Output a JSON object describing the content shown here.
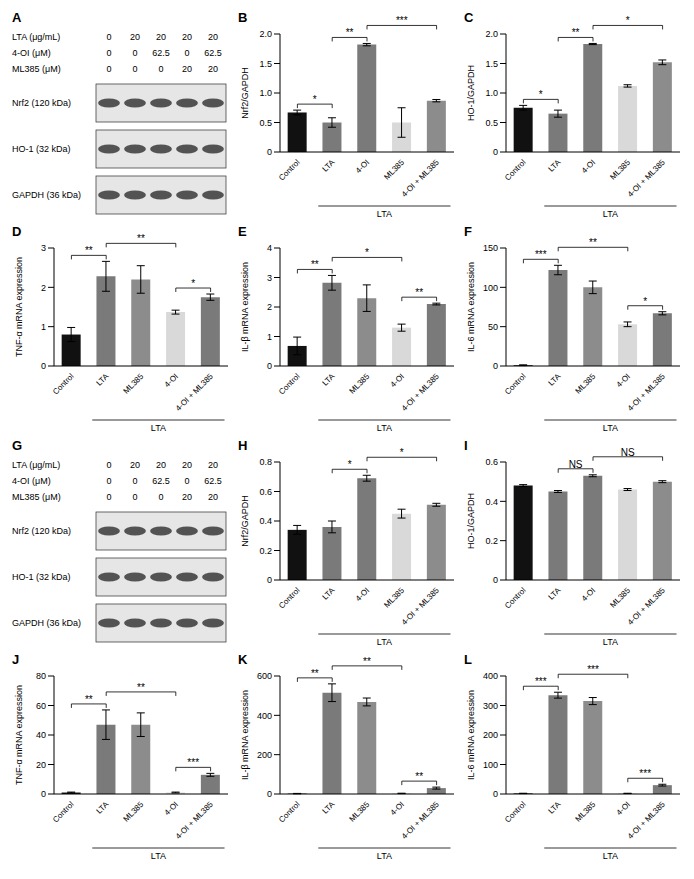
{
  "chart_data": [
    {
      "type": "western_blot",
      "panel": "A",
      "conditions": [
        {
          "label": "LTA (μg/mL)",
          "values": [
            0,
            20,
            20,
            20,
            20
          ]
        },
        {
          "label": "4-OI (μM)",
          "values": [
            0,
            0,
            62.5,
            0,
            62.5
          ]
        },
        {
          "label": "ML385 (μM)",
          "values": [
            0,
            0,
            0,
            20,
            20
          ]
        }
      ],
      "bands": [
        "Nrf2 (120 kDa)",
        "HO-1 (32 kDa)",
        "GAPDH (36 kDa)"
      ]
    },
    {
      "type": "bar",
      "panel": "B",
      "ylabel": "Nrf2/GAPDH",
      "categories": [
        "Control",
        "LTA",
        "4-OI",
        "ML385",
        "4-OI + ML385"
      ],
      "values": [
        0.67,
        0.5,
        1.82,
        0.5,
        0.87
      ],
      "errors": [
        0.04,
        0.08,
        0.02,
        0.25,
        0.02
      ],
      "colors": [
        "#111111",
        "#7a7a7a",
        "#7a7a7a",
        "#d9d9d9",
        "#8c8c8c"
      ],
      "ylim": [
        0,
        2
      ],
      "yticks": [
        0,
        0.5,
        {
          "value": 1,
          "label": "1.0"
        },
        1.5,
        {
          "value": 2,
          "label": "2.0"
        }
      ],
      "annotations": [
        {
          "from": 0,
          "to": 1,
          "label": "*"
        },
        {
          "from": 1,
          "to": 2,
          "label": "**"
        },
        {
          "from": 2,
          "to": 4,
          "label": "***"
        }
      ],
      "group": {
        "from": 1,
        "to": 4,
        "label": "LTA"
      }
    },
    {
      "type": "bar",
      "panel": "C",
      "ylabel": "HO-1/GAPDH",
      "categories": [
        "Control",
        "LTA",
        "4-OI",
        "ML385",
        "4-OI + ML385"
      ],
      "values": [
        0.75,
        0.65,
        1.83,
        1.12,
        1.52
      ],
      "errors": [
        0.04,
        0.06,
        0.01,
        0.02,
        0.04
      ],
      "colors": [
        "#111111",
        "#7a7a7a",
        "#7a7a7a",
        "#d9d9d9",
        "#8c8c8c"
      ],
      "ylim": [
        0,
        2
      ],
      "yticks": [
        0,
        0.5,
        {
          "value": 1,
          "label": "1.0"
        },
        1.5,
        {
          "value": 2,
          "label": "2.0"
        }
      ],
      "annotations": [
        {
          "from": 0,
          "to": 1,
          "label": "*"
        },
        {
          "from": 1,
          "to": 2,
          "label": "**"
        },
        {
          "from": 2,
          "to": 4,
          "label": "*"
        }
      ],
      "group": {
        "from": 1,
        "to": 4,
        "label": "LTA"
      }
    },
    {
      "type": "bar",
      "panel": "D",
      "ylabel": "TNF-α mRNA expression",
      "categories": [
        "Control",
        "LTA",
        "ML385",
        "4-OI",
        "4-OI + ML385"
      ],
      "values": [
        0.8,
        2.28,
        2.2,
        1.37,
        1.75
      ],
      "errors": [
        0.18,
        0.38,
        0.35,
        0.05,
        0.08
      ],
      "colors": [
        "#111111",
        "#7a7a7a",
        "#8c8c8c",
        "#d9d9d9",
        "#7a7a7a"
      ],
      "ylim": [
        0,
        3
      ],
      "yticks": [
        0,
        1,
        2,
        3
      ],
      "annotations": [
        {
          "from": 0,
          "to": 1,
          "label": "**"
        },
        {
          "from": 1,
          "to": 3,
          "label": "**"
        },
        {
          "from": 3,
          "to": 4,
          "label": "*"
        }
      ],
      "group": {
        "from": 1,
        "to": 4,
        "label": "LTA"
      }
    },
    {
      "type": "bar",
      "panel": "E",
      "ylabel": "IL-β mRNA expression",
      "categories": [
        "Control",
        "LTA",
        "ML385",
        "4-OI",
        "4-OI + ML385"
      ],
      "values": [
        0.68,
        2.82,
        2.3,
        1.3,
        2.1
      ],
      "errors": [
        0.3,
        0.25,
        0.45,
        0.12,
        0.03
      ],
      "colors": [
        "#111111",
        "#7a7a7a",
        "#8c8c8c",
        "#d9d9d9",
        "#7a7a7a"
      ],
      "ylim": [
        0,
        4
      ],
      "yticks": [
        0,
        1,
        2,
        3,
        4
      ],
      "annotations": [
        {
          "from": 0,
          "to": 1,
          "label": "**"
        },
        {
          "from": 1,
          "to": 3,
          "label": "*"
        },
        {
          "from": 3,
          "to": 4,
          "label": "**"
        }
      ],
      "group": {
        "from": 1,
        "to": 4,
        "label": "LTA"
      }
    },
    {
      "type": "bar",
      "panel": "F",
      "ylabel": "IL-6 mRNA expression",
      "categories": [
        "Control",
        "LTA",
        "ML385",
        "4-OI",
        "4-OI + ML385"
      ],
      "values": [
        1,
        122,
        100,
        53,
        67
      ],
      "errors": [
        0.5,
        6,
        8,
        3,
        2
      ],
      "colors": [
        "#111111",
        "#7a7a7a",
        "#8c8c8c",
        "#d9d9d9",
        "#7a7a7a"
      ],
      "ylim": [
        0,
        150
      ],
      "yticks": [
        0,
        50,
        100,
        150
      ],
      "annotations": [
        {
          "from": 0,
          "to": 1,
          "label": "***"
        },
        {
          "from": 1,
          "to": 3,
          "label": "**"
        },
        {
          "from": 3,
          "to": 4,
          "label": "*"
        }
      ],
      "group": {
        "from": 1,
        "to": 4,
        "label": "LTA"
      }
    },
    {
      "type": "western_blot",
      "panel": "G",
      "conditions": [
        {
          "label": "LTA (μg/mL)",
          "values": [
            0,
            20,
            20,
            20,
            20
          ]
        },
        {
          "label": "4-OI (μM)",
          "values": [
            0,
            0,
            62.5,
            0,
            62.5
          ]
        },
        {
          "label": "ML385 (μM)",
          "values": [
            0,
            0,
            0,
            20,
            20
          ]
        }
      ],
      "bands": [
        "Nrf2 (120 kDa)",
        "HO-1 (32 kDa)",
        "GAPDH (36 kDa)"
      ]
    },
    {
      "type": "bar",
      "panel": "H",
      "ylabel": "Nrf2/GAPDH",
      "categories": [
        "Control",
        "LTA",
        "4-OI",
        "ML385",
        "4-OI + ML385"
      ],
      "values": [
        0.34,
        0.36,
        0.69,
        0.45,
        0.51
      ],
      "errors": [
        0.03,
        0.04,
        0.02,
        0.03,
        0.01
      ],
      "colors": [
        "#111111",
        "#7a7a7a",
        "#7a7a7a",
        "#d9d9d9",
        "#8c8c8c"
      ],
      "ylim": [
        0,
        0.8
      ],
      "yticks": [
        0,
        0.2,
        0.4,
        0.6,
        0.8
      ],
      "annotations": [
        {
          "from": 1,
          "to": 2,
          "label": "*"
        },
        {
          "from": 2,
          "to": 4,
          "label": "*"
        }
      ],
      "group": {
        "from": 1,
        "to": 4,
        "label": "LTA"
      }
    },
    {
      "type": "bar",
      "panel": "I",
      "ylabel": "HO-1/GAPDH",
      "categories": [
        "Control",
        "LTA",
        "4-OI",
        "ML385",
        "4-OI + ML385"
      ],
      "values": [
        0.48,
        0.45,
        0.53,
        0.46,
        0.5
      ],
      "errors": [
        0.005,
        0.005,
        0.005,
        0.005,
        0.005
      ],
      "colors": [
        "#111111",
        "#7a7a7a",
        "#7a7a7a",
        "#d9d9d9",
        "#8c8c8c"
      ],
      "ylim": [
        0,
        0.6
      ],
      "yticks": [
        0,
        0.2,
        0.4,
        0.6
      ],
      "annotations": [
        {
          "from": 1,
          "to": 2,
          "label": "NS"
        },
        {
          "from": 2,
          "to": 4,
          "label": "NS"
        }
      ],
      "group": {
        "from": 1,
        "to": 4,
        "label": "LTA"
      }
    },
    {
      "type": "bar",
      "panel": "J",
      "ylabel": "TNF-α mRNA expression",
      "categories": [
        "Control",
        "LTA",
        "ML385",
        "4-OI",
        "4-OI + ML385"
      ],
      "values": [
        1,
        47,
        47,
        1,
        13
      ],
      "errors": [
        0.3,
        10,
        8,
        0.3,
        1
      ],
      "colors": [
        "#111111",
        "#7a7a7a",
        "#8c8c8c",
        "#d9d9d9",
        "#7a7a7a"
      ],
      "ylim": [
        0,
        80
      ],
      "yticks": [
        0,
        20,
        40,
        60,
        80
      ],
      "annotations": [
        {
          "from": 0,
          "to": 1,
          "label": "**"
        },
        {
          "from": 1,
          "to": 3,
          "label": "**"
        },
        {
          "from": 3,
          "to": 4,
          "label": "***"
        }
      ],
      "group": {
        "from": 1,
        "to": 4,
        "label": "LTA"
      }
    },
    {
      "type": "bar",
      "panel": "K",
      "ylabel": "IL-β mRNA expression",
      "categories": [
        "Control",
        "LTA",
        "ML385",
        "4-OI",
        "4-OI + ML385"
      ],
      "values": [
        2,
        515,
        468,
        3,
        30
      ],
      "errors": [
        1,
        45,
        20,
        1,
        5
      ],
      "colors": [
        "#111111",
        "#7a7a7a",
        "#8c8c8c",
        "#d9d9d9",
        "#7a7a7a"
      ],
      "ylim": [
        0,
        600
      ],
      "yticks": [
        0,
        200,
        400,
        600
      ],
      "annotations": [
        {
          "from": 0,
          "to": 1,
          "label": "**"
        },
        {
          "from": 1,
          "to": 3,
          "label": "**"
        },
        {
          "from": 3,
          "to": 4,
          "label": "**"
        }
      ],
      "group": {
        "from": 1,
        "to": 4,
        "label": "LTA"
      }
    },
    {
      "type": "bar",
      "panel": "L",
      "ylabel": "IL-6 mRNA expression",
      "categories": [
        "Control",
        "LTA",
        "ML385",
        "4-OI",
        "4-OI + ML385"
      ],
      "values": [
        2,
        335,
        315,
        2,
        30
      ],
      "errors": [
        0.5,
        10,
        12,
        0.5,
        3
      ],
      "colors": [
        "#111111",
        "#7a7a7a",
        "#8c8c8c",
        "#d9d9d9",
        "#7a7a7a"
      ],
      "ylim": [
        0,
        400
      ],
      "yticks": [
        0,
        100,
        200,
        300,
        400
      ],
      "annotations": [
        {
          "from": 0,
          "to": 1,
          "label": "***"
        },
        {
          "from": 1,
          "to": 3,
          "label": "***"
        },
        {
          "from": 3,
          "to": 4,
          "label": "***"
        }
      ],
      "group": {
        "from": 1,
        "to": 4,
        "label": "LTA"
      }
    }
  ]
}
